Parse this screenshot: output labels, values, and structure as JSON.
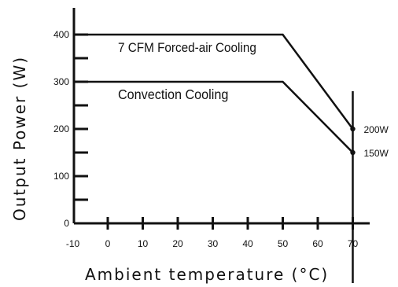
{
  "chart_data": {
    "type": "line",
    "xlabel": "Ambient temperature (°C)",
    "ylabel": "Output Power (W)",
    "xlim": [
      -10,
      70
    ],
    "ylim": [
      0,
      400
    ],
    "xticks": [
      -10,
      0,
      10,
      20,
      30,
      40,
      50,
      60,
      70
    ],
    "yticks": [
      0,
      100,
      200,
      300,
      400
    ],
    "grid": false,
    "series": [
      {
        "name": "7 CFM Forced-air Cooling",
        "x": [
          -10,
          50,
          70
        ],
        "y": [
          400,
          400,
          200
        ]
      },
      {
        "name": "Convection Cooling",
        "x": [
          -10,
          50,
          70
        ],
        "y": [
          300,
          300,
          150
        ]
      }
    ],
    "annotations": [
      {
        "text": "200W",
        "x": 70,
        "y": 200
      },
      {
        "text": "150W",
        "x": 70,
        "y": 150
      }
    ],
    "colors": {
      "line": "#111111",
      "axis": "#111111",
      "background": "#ffffff"
    }
  }
}
